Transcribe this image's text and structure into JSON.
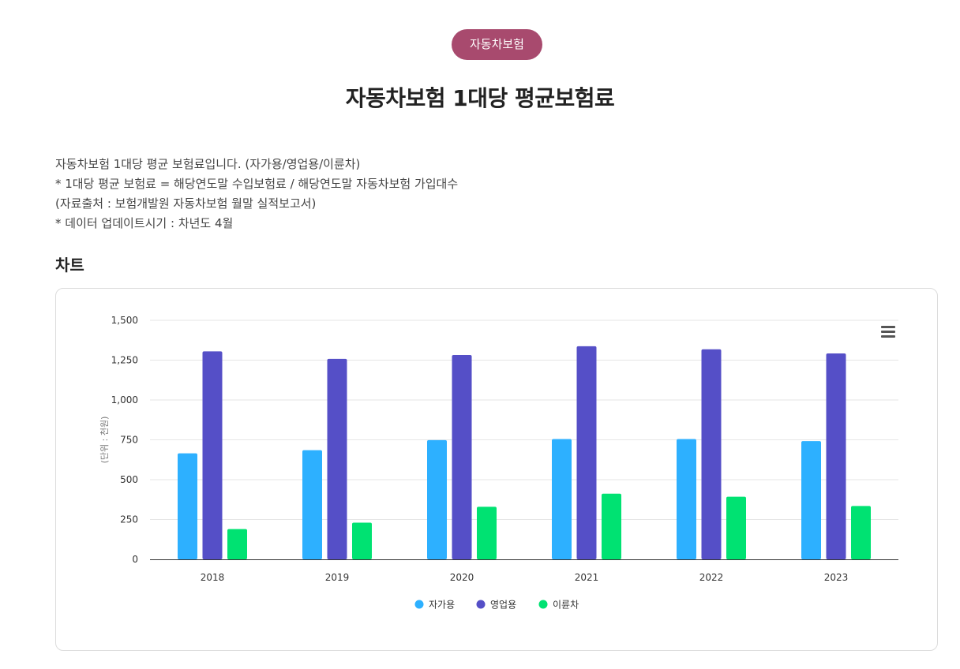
{
  "header": {
    "badge": "자동차보험",
    "title": "자동차보험 1대당 평균보험료"
  },
  "description": [
    "자동차보험 1대당 평균 보험료입니다. (자가용/영업용/이륜차)",
    "* 1대당 평균 보험료 = 해당연도말 수입보험료 / 해당연도말 자동차보험 가입대수",
    "(자료출처 : 보험개발원 자동차보험 월말 실적보고서)",
    "* 데이터 업데이트시기 : 차년도 4월"
  ],
  "section": {
    "title": "차트"
  },
  "chart_data": {
    "type": "bar",
    "categories": [
      "2018",
      "2019",
      "2020",
      "2021",
      "2022",
      "2023"
    ],
    "series": [
      {
        "name": "자가용",
        "color": "#2db0ff",
        "values": [
          665,
          685,
          748,
          755,
          755,
          742
        ]
      },
      {
        "name": "영업용",
        "color": "#554fc7",
        "values": [
          1305,
          1258,
          1282,
          1337,
          1318,
          1292
        ]
      },
      {
        "name": "이륜차",
        "color": "#00e272",
        "values": [
          190,
          230,
          330,
          412,
          393,
          335
        ]
      }
    ],
    "ylabel": "(단위 : 천원)",
    "xlabel": "",
    "ylim": [
      0,
      1500
    ],
    "yticks": [
      "0",
      "250",
      "500",
      "750",
      "1,000",
      "1,250",
      "1,500"
    ],
    "grid": true,
    "legend": "bottom-center"
  },
  "icons": {
    "menu": "hamburger-menu-icon"
  }
}
